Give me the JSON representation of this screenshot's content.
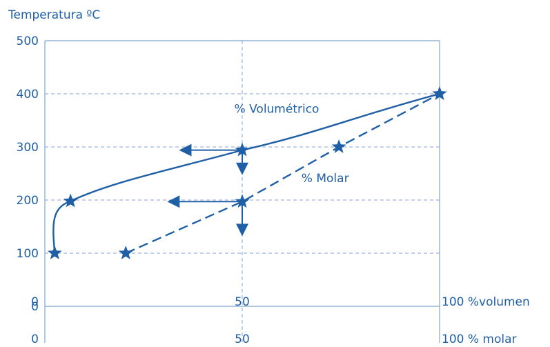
{
  "chart_data": {
    "type": "line",
    "title": "Temperatura ºC",
    "y_ticks": [
      "500",
      "400",
      "300",
      "200",
      "100",
      "0"
    ],
    "y_values": [
      500,
      400,
      300,
      200,
      100,
      0
    ],
    "ylim": [
      0,
      500
    ],
    "x_axes": [
      {
        "zero_label": "0",
        "mid_label": "50",
        "end_label": "100 %volumen"
      },
      {
        "zero_label": "0",
        "mid_label": "50",
        "end_label": "100 % molar"
      }
    ],
    "xlim": [
      0,
      100
    ],
    "grid": {
      "horizontal": [
        100,
        200,
        300,
        400
      ],
      "vertical": [
        50
      ]
    },
    "colors": {
      "main": "#1f5fa6",
      "grid": "#8a9fd8",
      "frame": "#7fa7cc"
    },
    "series": [
      {
        "name": "% Volumétrico",
        "style": "solid",
        "x": [
          2.5,
          6.5,
          50,
          100
        ],
        "y": [
          100,
          198,
          294,
          400
        ]
      },
      {
        "name": "% Molar",
        "style": "dashed",
        "x": [
          20.5,
          50,
          74.5,
          100
        ],
        "y": [
          100,
          197,
          300,
          400
        ]
      }
    ],
    "annotations": [
      {
        "type": "arrow-left",
        "from": [
          50,
          294
        ],
        "to_x": 34
      },
      {
        "type": "arrow-down",
        "from": [
          50,
          294
        ],
        "to_y": 247
      },
      {
        "type": "arrow-left",
        "from": [
          50,
          197
        ],
        "to_x": 31
      },
      {
        "type": "arrow-down",
        "from": [
          50,
          197
        ],
        "to_y": 132
      }
    ]
  }
}
